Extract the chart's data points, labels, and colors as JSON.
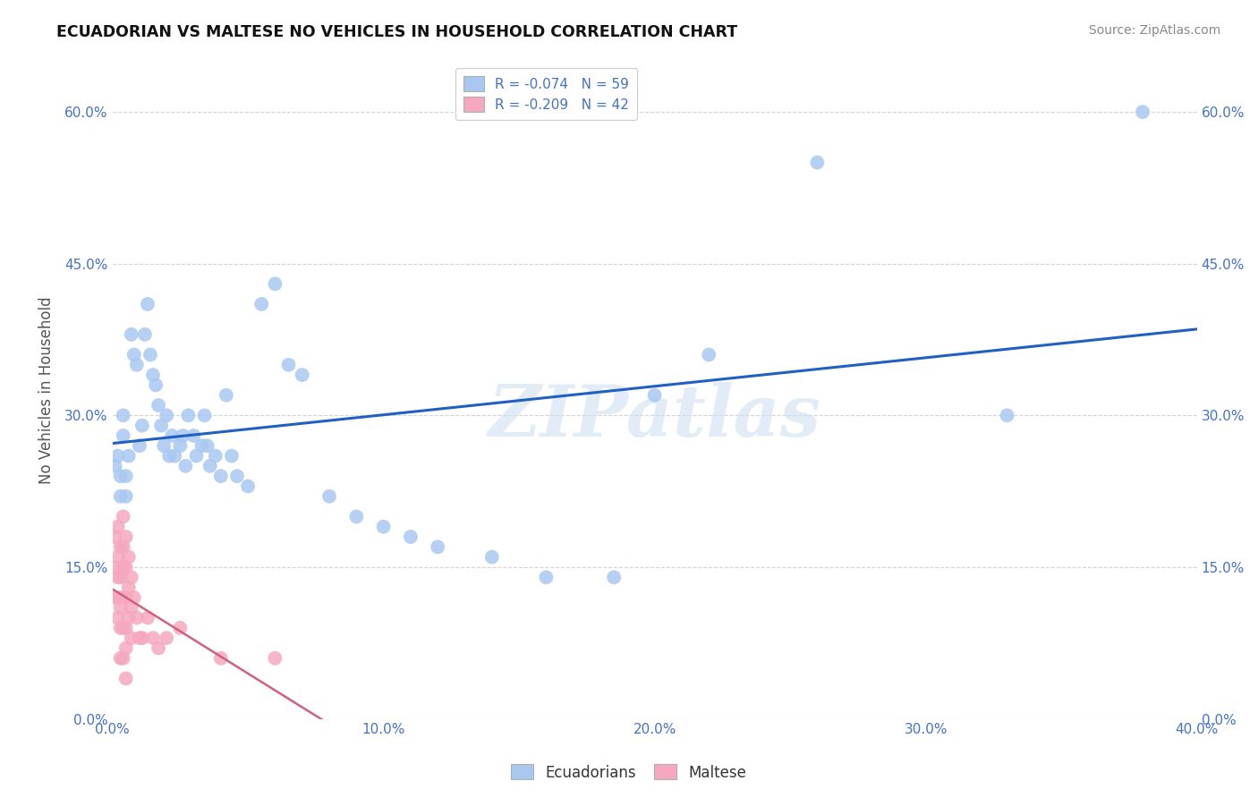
{
  "title": "ECUADORIAN VS MALTESE NO VEHICLES IN HOUSEHOLD CORRELATION CHART",
  "source": "Source: ZipAtlas.com",
  "ylabel": "No Vehicles in Household",
  "xlim": [
    0.0,
    0.4
  ],
  "ylim": [
    0.0,
    0.65
  ],
  "xtick_vals": [
    0.0,
    0.1,
    0.2,
    0.3,
    0.4
  ],
  "ytick_vals": [
    0.0,
    0.15,
    0.3,
    0.45,
    0.6
  ],
  "ecuadorian_R": -0.074,
  "ecuadorian_N": 59,
  "maltese_R": -0.209,
  "maltese_N": 42,
  "ecuadorian_color": "#a8c8f0",
  "maltese_color": "#f5a8c0",
  "ecuadorian_line_color": "#2060c0",
  "maltese_line_color": "#d06080",
  "watermark": "ZIPatlas",
  "background_color": "#ffffff",
  "ecuadorian_x": [
    0.001,
    0.002,
    0.003,
    0.003,
    0.004,
    0.004,
    0.005,
    0.005,
    0.006,
    0.007,
    0.008,
    0.009,
    0.01,
    0.011,
    0.012,
    0.013,
    0.014,
    0.015,
    0.016,
    0.017,
    0.018,
    0.019,
    0.02,
    0.021,
    0.022,
    0.023,
    0.025,
    0.026,
    0.027,
    0.028,
    0.03,
    0.031,
    0.033,
    0.034,
    0.035,
    0.036,
    0.038,
    0.04,
    0.042,
    0.044,
    0.046,
    0.05,
    0.055,
    0.06,
    0.065,
    0.07,
    0.08,
    0.09,
    0.1,
    0.11,
    0.12,
    0.14,
    0.16,
    0.185,
    0.2,
    0.22,
    0.26,
    0.33,
    0.38
  ],
  "ecuadorian_y": [
    0.25,
    0.26,
    0.24,
    0.22,
    0.3,
    0.28,
    0.24,
    0.22,
    0.26,
    0.38,
    0.36,
    0.35,
    0.27,
    0.29,
    0.38,
    0.41,
    0.36,
    0.34,
    0.33,
    0.31,
    0.29,
    0.27,
    0.3,
    0.26,
    0.28,
    0.26,
    0.27,
    0.28,
    0.25,
    0.3,
    0.28,
    0.26,
    0.27,
    0.3,
    0.27,
    0.25,
    0.26,
    0.24,
    0.32,
    0.26,
    0.24,
    0.23,
    0.41,
    0.43,
    0.35,
    0.34,
    0.22,
    0.2,
    0.19,
    0.18,
    0.17,
    0.16,
    0.14,
    0.14,
    0.32,
    0.36,
    0.55,
    0.3,
    0.6
  ],
  "maltese_x": [
    0.001,
    0.001,
    0.001,
    0.002,
    0.002,
    0.002,
    0.002,
    0.002,
    0.003,
    0.003,
    0.003,
    0.003,
    0.003,
    0.004,
    0.004,
    0.004,
    0.004,
    0.004,
    0.004,
    0.005,
    0.005,
    0.005,
    0.005,
    0.005,
    0.005,
    0.006,
    0.006,
    0.006,
    0.007,
    0.007,
    0.007,
    0.008,
    0.009,
    0.01,
    0.011,
    0.013,
    0.015,
    0.017,
    0.02,
    0.025,
    0.04,
    0.06
  ],
  "maltese_y": [
    0.18,
    0.15,
    0.12,
    0.19,
    0.16,
    0.14,
    0.12,
    0.1,
    0.17,
    0.14,
    0.11,
    0.09,
    0.06,
    0.2,
    0.17,
    0.15,
    0.12,
    0.09,
    0.06,
    0.18,
    0.15,
    0.12,
    0.09,
    0.07,
    0.04,
    0.16,
    0.13,
    0.1,
    0.14,
    0.11,
    0.08,
    0.12,
    0.1,
    0.08,
    0.08,
    0.1,
    0.08,
    0.07,
    0.08,
    0.09,
    0.06,
    0.06
  ]
}
